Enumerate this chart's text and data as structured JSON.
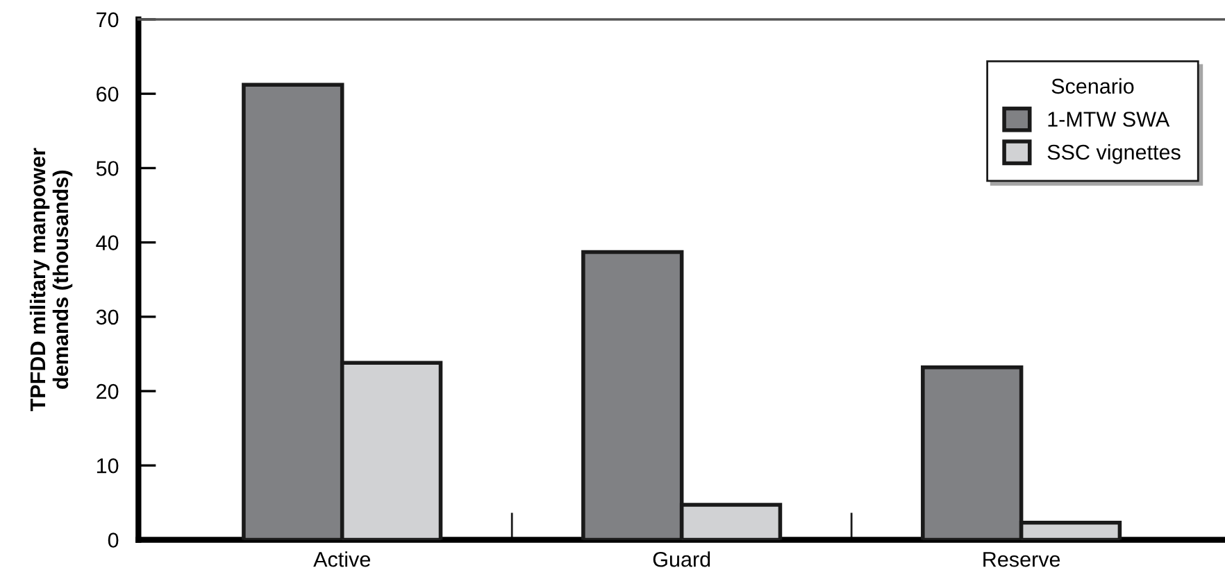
{
  "chart_data": {
    "type": "bar",
    "ylabel": "TPFDD military manpower\ndemands (thousands)",
    "categories": [
      "Active",
      "Guard",
      "Reserve"
    ],
    "series": [
      {
        "name": "1-MTW SWA",
        "color": "#808184",
        "values": [
          61.2,
          38.7,
          23.2
        ]
      },
      {
        "name": "SSC vignettes",
        "color": "#d1d2d4",
        "values": [
          23.8,
          4.7,
          2.3
        ]
      }
    ],
    "legend_title": "Scenario",
    "legend": "top right",
    "ylim": [
      0,
      70
    ],
    "yticks": [
      0,
      10,
      20,
      30,
      40,
      50,
      60,
      70
    ],
    "grid": false
  }
}
